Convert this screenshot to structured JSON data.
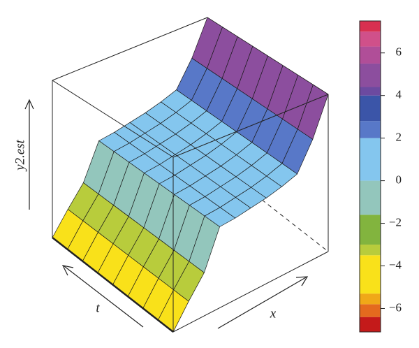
{
  "chart_data": {
    "type": "surface",
    "zlabel": "y2.est",
    "tlabel": "t",
    "xlabel": "x",
    "zlim": [
      -5.5,
      6
    ],
    "z": [
      [
        -5.5,
        -4,
        -2.6,
        0,
        0.1,
        0.3,
        0.5,
        0.8,
        1.2,
        3.2,
        6
      ],
      [
        -5.5,
        -4,
        -2.6,
        0,
        0.1,
        0.3,
        0.5,
        0.8,
        1.2,
        3.2,
        6
      ],
      [
        -5.5,
        -4,
        -2.6,
        0,
        0.1,
        0.3,
        0.5,
        0.8,
        1.2,
        3.2,
        6
      ],
      [
        -5.5,
        -4,
        -2.6,
        0,
        0.1,
        0.3,
        0.5,
        0.8,
        1.2,
        3.2,
        6
      ],
      [
        -5.5,
        -4,
        -2.6,
        0,
        0.1,
        0.3,
        0.5,
        0.8,
        1.2,
        3.2,
        6
      ],
      [
        -5.5,
        -4,
        -2.6,
        0,
        0.1,
        0.3,
        0.5,
        0.8,
        1.2,
        3.2,
        6
      ],
      [
        -5.5,
        -4,
        -2.6,
        0,
        0.1,
        0.3,
        0.5,
        0.8,
        1.2,
        3.2,
        6
      ],
      [
        -5.5,
        -4,
        -2.6,
        0,
        0.1,
        0.3,
        0.5,
        0.8,
        1.2,
        3.2,
        6
      ],
      [
        -5.5,
        -4,
        -2.6,
        0,
        0.1,
        0.3,
        0.5,
        0.8,
        1.2,
        3.2,
        6
      ]
    ],
    "clim": [
      -7.1,
      7.5
    ],
    "cticks": [
      {
        "value": -6,
        "label": "−6"
      },
      {
        "value": -4,
        "label": "−4"
      },
      {
        "value": -2,
        "label": "−2"
      },
      0,
      2,
      4,
      6
    ],
    "colorscale": [
      [
        -7.1,
        "#c41a1a"
      ],
      [
        -6.4,
        "#e46a1e"
      ],
      [
        -5.8,
        "#f0a818"
      ],
      [
        -5.3,
        "#f9e11a"
      ],
      [
        -3.5,
        "#b8cc3c"
      ],
      [
        -3.0,
        "#82b43e"
      ],
      [
        -1.6,
        "#93c6bc"
      ],
      [
        0,
        "#84c6ee"
      ],
      [
        2,
        "#5878c8"
      ],
      [
        2.8,
        "#3b55a8"
      ],
      [
        4,
        "#6c4aa0"
      ],
      [
        4.4,
        "#8c4e9e"
      ],
      [
        5.5,
        "#b04e98"
      ],
      [
        6.3,
        "#d0508a"
      ],
      [
        7,
        "#d83050"
      ]
    ]
  }
}
